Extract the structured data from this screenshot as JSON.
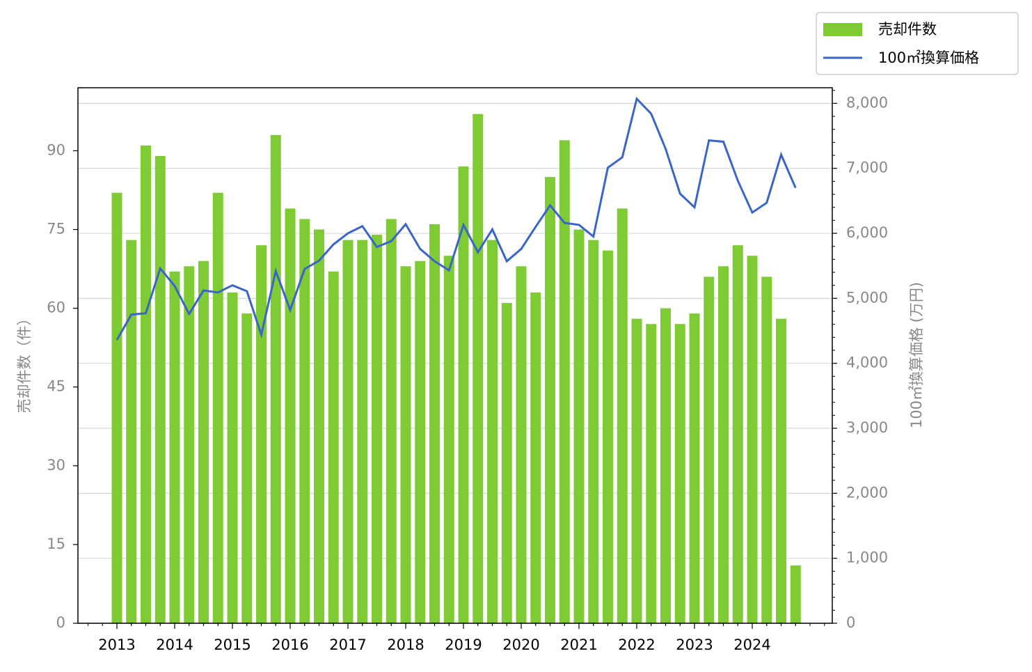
{
  "chart_data": {
    "type": "bar-line",
    "categories": [
      "2013",
      null,
      null,
      null,
      "2014",
      null,
      null,
      null,
      "2015",
      null,
      null,
      null,
      "2016",
      null,
      null,
      null,
      "2017",
      null,
      null,
      null,
      "2018",
      null,
      null,
      null,
      "2019",
      null,
      null,
      null,
      "2020",
      null,
      null,
      null,
      "2021",
      null,
      null,
      null,
      "2022",
      null,
      null,
      null,
      "2023",
      null,
      null,
      null,
      "2024",
      null,
      null,
      null
    ],
    "series": [
      {
        "name": "売却件数",
        "type": "bar",
        "color": "#7fcb34",
        "values": [
          82,
          73,
          91,
          89,
          67,
          68,
          69,
          82,
          63,
          59,
          72,
          93,
          79,
          77,
          75,
          67,
          73,
          73,
          74,
          77,
          68,
          69,
          76,
          70,
          87,
          97,
          73,
          61,
          68,
          63,
          85,
          92,
          75,
          73,
          71,
          79,
          58,
          57,
          60,
          57,
          59,
          66,
          68,
          72,
          70,
          66,
          58,
          11
        ]
      },
      {
        "name": "100㎡換算価格",
        "type": "line",
        "axis": "y2",
        "color": "#3a65c8",
        "values": [
          4360,
          4750,
          4770,
          5460,
          5190,
          4760,
          5120,
          5090,
          5200,
          5110,
          4440,
          5420,
          4820,
          5450,
          5580,
          5830,
          6000,
          6110,
          5790,
          5880,
          6140,
          5760,
          5570,
          5430,
          6130,
          5710,
          6060,
          5570,
          5760,
          6100,
          6430,
          6160,
          6130,
          5950,
          7010,
          7170,
          8070,
          7840,
          7300,
          6610,
          6400,
          7430,
          7410,
          6810,
          6320,
          6470,
          7210,
          6700
        ]
      }
    ],
    "ylabel": "売却件数（件）",
    "y2label": "100㎡換算価格 (万円)",
    "ylim": [
      0,
      102
    ],
    "yticks": [
      0,
      15,
      30,
      45,
      60,
      75,
      90
    ],
    "y2lim": [
      0,
      8240
    ],
    "y2ticks": [
      0,
      {
        "value": 1000,
        "label": "1,000"
      },
      {
        "value": 2000,
        "label": "2,000"
      },
      {
        "value": 3000,
        "label": "3,000"
      },
      {
        "value": 4000,
        "label": "4,000"
      },
      {
        "value": 5000,
        "label": "5,000"
      },
      {
        "value": 6000,
        "label": "6,000"
      },
      {
        "value": 7000,
        "label": "7,000"
      },
      {
        "value": 8000,
        "label": "8,000"
      }
    ],
    "grid": true,
    "legend": "upper right"
  }
}
